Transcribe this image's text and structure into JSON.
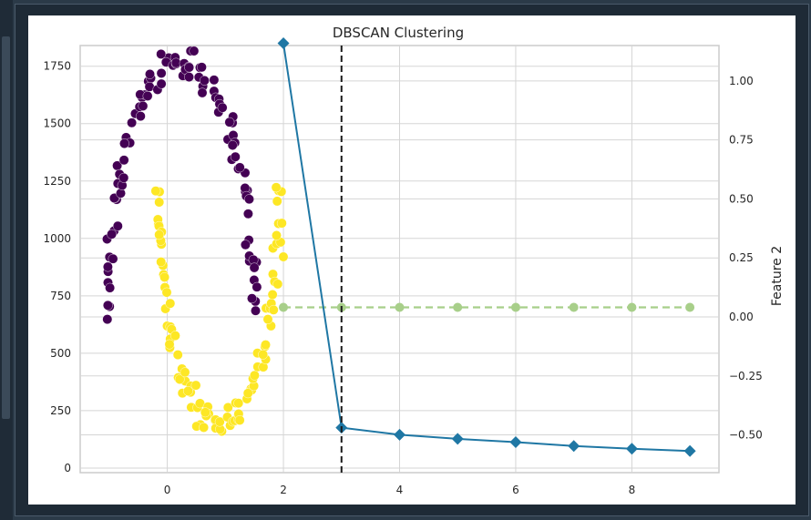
{
  "chart_data": {
    "type": "scatter",
    "title": "DBSCAN Clustering",
    "x_ticks": [
      0,
      2,
      4,
      6,
      8
    ],
    "y_left_ticks": [
      0,
      250,
      500,
      750,
      1000,
      1250,
      1500,
      1750
    ],
    "y_right_ticks": [
      "1.00",
      "0.75",
      "0.50",
      "0.25",
      "0.00",
      "−0.25",
      "−0.50"
    ],
    "ylabel_right": "Feature 2",
    "xlim": [
      -1.5,
      9.5
    ],
    "ylim_left": [
      -20,
      1840
    ],
    "ylim_right": [
      -0.66,
      1.15
    ],
    "grid": true,
    "vline": {
      "x": 3,
      "style": "dashed",
      "color": "#1a1a1a"
    },
    "series": [
      {
        "type": "line",
        "marker": "diamond",
        "color": "#1f77a4",
        "x": [
          2,
          3,
          4,
          5,
          6,
          7,
          8,
          9
        ],
        "y": [
          1850,
          176,
          145,
          127,
          113,
          96,
          84,
          74
        ]
      },
      {
        "type": "line",
        "marker": "circle",
        "dashed": true,
        "color": "#a8cf8a",
        "x": [
          2,
          3,
          4,
          5,
          6,
          7,
          8,
          9
        ],
        "y": [
          700,
          700,
          700,
          700,
          700,
          700,
          700,
          700
        ]
      }
    ],
    "clusters": [
      {
        "color": "#440154",
        "shape": "upper-arc"
      },
      {
        "color": "#fde725",
        "shape": "lower-arc"
      }
    ]
  }
}
